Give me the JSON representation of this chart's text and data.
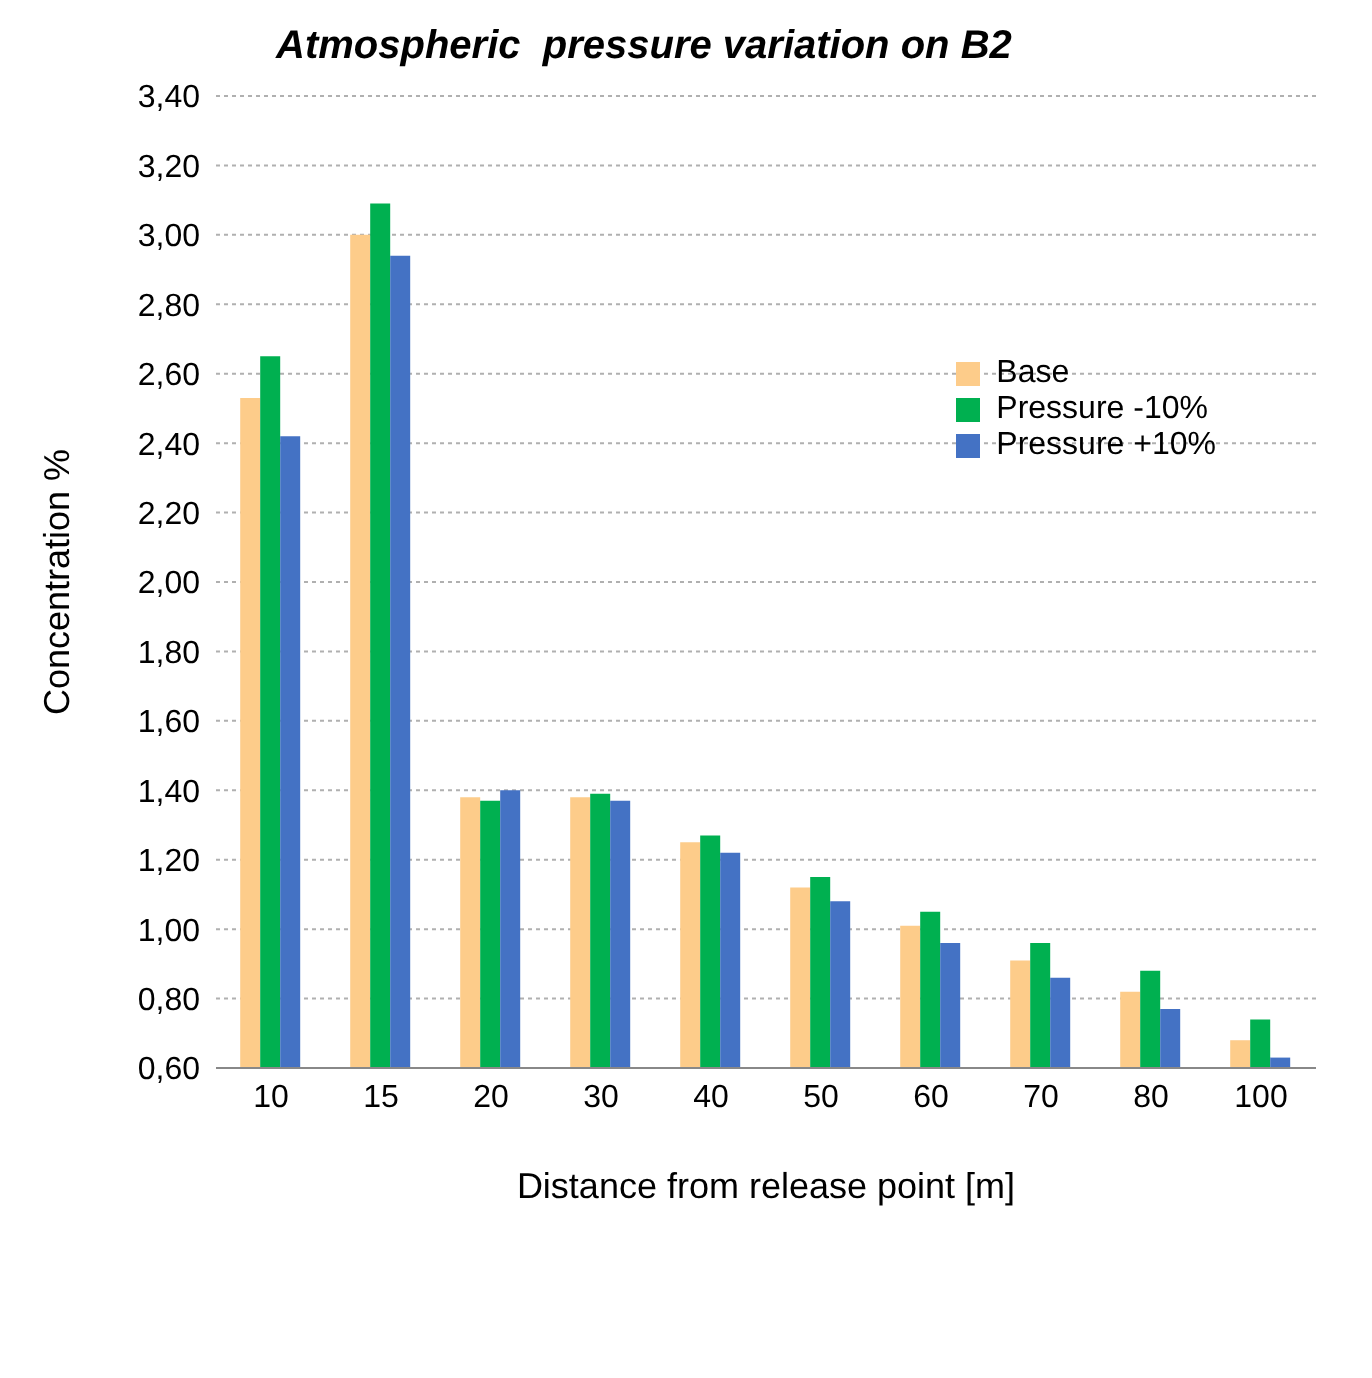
{
  "chart_data": {
    "type": "bar",
    "title": "Atmospheric  pressure variation on B2",
    "xlabel": "Distance from release point [m]",
    "ylabel": "Concentration %",
    "categories": [
      "10",
      "15",
      "20",
      "30",
      "40",
      "50",
      "60",
      "70",
      "80",
      "100"
    ],
    "series": [
      {
        "name": "Base",
        "color": "#fdcc8a",
        "values": [
          2.53,
          3.0,
          1.38,
          1.38,
          1.25,
          1.12,
          1.01,
          0.91,
          0.82,
          0.68
        ]
      },
      {
        "name": "Pressure -10%",
        "color": "#00b050",
        "values": [
          2.65,
          3.09,
          1.37,
          1.39,
          1.27,
          1.15,
          1.05,
          0.96,
          0.88,
          0.74
        ]
      },
      {
        "name": "Pressure +10%",
        "color": "#4472c4",
        "values": [
          2.42,
          2.94,
          1.4,
          1.37,
          1.22,
          1.08,
          0.96,
          0.86,
          0.77,
          0.63
        ]
      }
    ],
    "ylim": [
      0.6,
      3.4
    ],
    "yticks": [
      {
        "value": 0.6,
        "label": "0,60"
      },
      {
        "value": 0.8,
        "label": "0,80"
      },
      {
        "value": 1.0,
        "label": "1,00"
      },
      {
        "value": 1.2,
        "label": "1,20"
      },
      {
        "value": 1.4,
        "label": "1,40"
      },
      {
        "value": 1.6,
        "label": "1,60"
      },
      {
        "value": 1.8,
        "label": "1,80"
      },
      {
        "value": 2.0,
        "label": "2,00"
      },
      {
        "value": 2.2,
        "label": "2,20"
      },
      {
        "value": 2.4,
        "label": "2,40"
      },
      {
        "value": 2.6,
        "label": "2,60"
      },
      {
        "value": 2.8,
        "label": "2,80"
      },
      {
        "value": 3.0,
        "label": "3,00"
      },
      {
        "value": 3.2,
        "label": "3,20"
      },
      {
        "value": 3.4,
        "label": "3,40"
      }
    ],
    "grid": "y",
    "legend": "top right"
  }
}
